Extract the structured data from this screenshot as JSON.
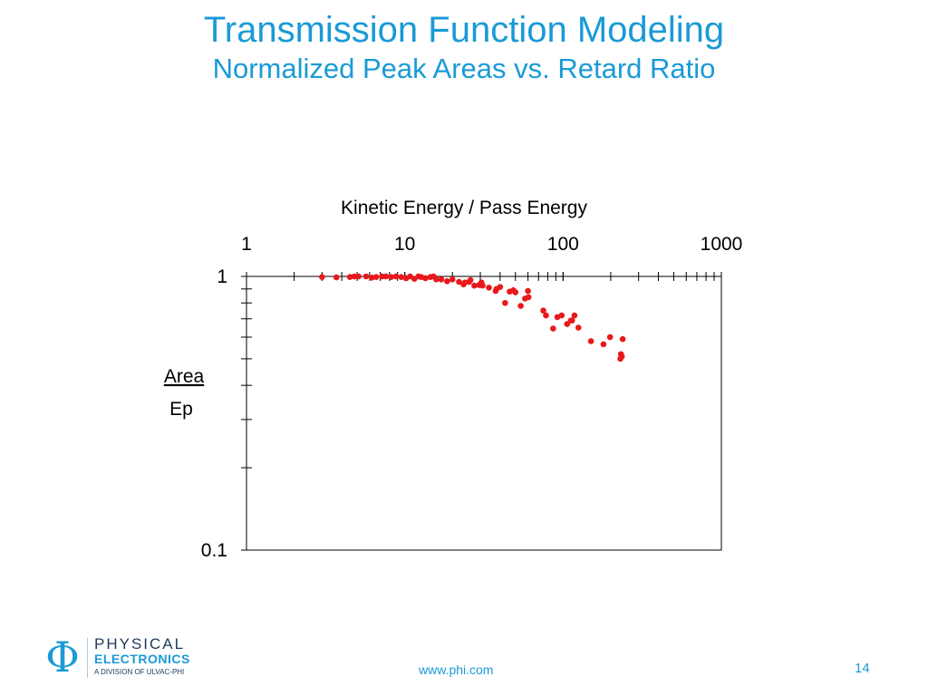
{
  "slide": {
    "title": "Transmission Function Modeling",
    "subtitle": "Normalized Peak Areas vs. Retard Ratio",
    "footer_url": "www.phi.com",
    "page_number": "14"
  },
  "logo": {
    "symbol": "Φ",
    "line1": "PHYSICAL",
    "line2": "ELECTRONICS",
    "line3": "A DIVISION OF ULVAC-PHI"
  },
  "chart_data": {
    "type": "scatter",
    "title": "",
    "xlabel": "Kinetic Energy / Pass Energy",
    "ylabel_numerator": "Area",
    "ylabel_denominator": "Ep",
    "x_axis_position": "top",
    "x_scale": "log",
    "y_scale": "log",
    "xlim": [
      1,
      1000
    ],
    "ylim": [
      0.1,
      1
    ],
    "x_ticklabels": [
      "1",
      "10",
      "100",
      "1000"
    ],
    "y_ticklabels": [
      "1",
      "0.1"
    ],
    "grid": false,
    "legend": "none",
    "marker_color": "#e8191c",
    "series": [
      {
        "points": [
          [
            3.0,
            0.995
          ],
          [
            3.7,
            0.992
          ],
          [
            4.5,
            0.995
          ],
          [
            4.8,
            1.0
          ],
          [
            5.1,
            1.0
          ],
          [
            5.7,
            1.0
          ],
          [
            6.2,
            0.99
          ],
          [
            6.6,
            0.995
          ],
          [
            7.2,
            1.0
          ],
          [
            7.6,
            1.0
          ],
          [
            8.2,
            0.995
          ],
          [
            8.8,
            1.0
          ],
          [
            9.5,
            0.995
          ],
          [
            10.2,
            0.985
          ],
          [
            10.8,
            1.0
          ],
          [
            11.5,
            0.98
          ],
          [
            12.2,
            1.0
          ],
          [
            12.7,
            0.995
          ],
          [
            13.5,
            0.985
          ],
          [
            14.5,
            0.995
          ],
          [
            15.2,
            1.0
          ],
          [
            15.8,
            0.975
          ],
          [
            17.0,
            0.975
          ],
          [
            18.5,
            0.96
          ],
          [
            20.0,
            0.975
          ],
          [
            22.0,
            0.955
          ],
          [
            23.5,
            0.935
          ],
          [
            24.0,
            0.95
          ],
          [
            25.5,
            0.955
          ],
          [
            26.0,
            0.97
          ],
          [
            27.5,
            0.925
          ],
          [
            29.5,
            0.93
          ],
          [
            30.5,
            0.95
          ],
          [
            31.0,
            0.925
          ],
          [
            34.0,
            0.91
          ],
          [
            37.5,
            0.885
          ],
          [
            38.0,
            0.9
          ],
          [
            40.0,
            0.915
          ],
          [
            43.0,
            0.8
          ],
          [
            46.0,
            0.88
          ],
          [
            48.5,
            0.89
          ],
          [
            50.0,
            0.875
          ],
          [
            54.0,
            0.78
          ],
          [
            57.5,
            0.83
          ],
          [
            60.0,
            0.885
          ],
          [
            60.5,
            0.84
          ],
          [
            75.0,
            0.75
          ],
          [
            78.0,
            0.72
          ],
          [
            86.5,
            0.645
          ],
          [
            92.0,
            0.71
          ],
          [
            98.0,
            0.72
          ],
          [
            106.0,
            0.67
          ],
          [
            112.0,
            0.69
          ],
          [
            114.0,
            0.69
          ],
          [
            118.0,
            0.72
          ],
          [
            125.0,
            0.65
          ],
          [
            150.0,
            0.58
          ],
          [
            180.0,
            0.565
          ],
          [
            198.0,
            0.6
          ],
          [
            230.0,
            0.5
          ],
          [
            232.0,
            0.52
          ],
          [
            235.0,
            0.51
          ],
          [
            238.0,
            0.59
          ]
        ]
      }
    ]
  }
}
